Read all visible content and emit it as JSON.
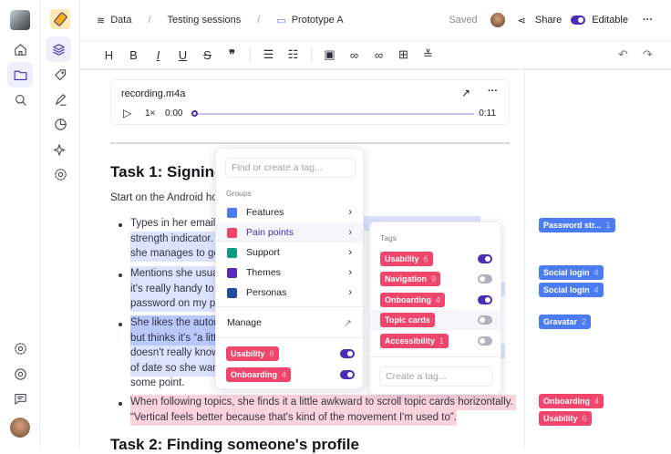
{
  "breadcrumb": {
    "items": [
      "Data",
      "Testing sessions",
      "Prototype A"
    ]
  },
  "header": {
    "status": "Saved",
    "share_label": "Share",
    "editable_label": "Editable",
    "editable_on": true
  },
  "toolbar": {
    "buttons": [
      "H",
      "B",
      "I",
      "U",
      "S",
      "❞",
      "bulleted-list",
      "numbered-list",
      "image",
      "link",
      "unlink",
      "table",
      "divider"
    ]
  },
  "audio": {
    "filename": "recording.m4a",
    "speed": "1×",
    "current": "0:00",
    "duration": "0:11",
    "progress": 0
  },
  "document": {
    "task1_title": "Task 1: Signing",
    "intro": "Start on the Android ho",
    "lines": [
      "Types in her email a",
      "strength indicator.",
      "she manages to ge",
      "Mentions she usua",
      "it's really handy to",
      "password on my ph",
      "She likes the autom",
      "but thinks it's “a litt",
      "doesn't really know",
      "of date so she wan",
      "some point."
    ],
    "pink_line1": "When following topics, she finds it a little awkward to scroll topic cards horizontally.",
    "pink_line2": "“Vertical feels better because that's kind of the movement I'm used to”.",
    "task2_title": "Task 2: Finding someone's profile"
  },
  "tag_menu": {
    "search_placeholder": "Find or create a tag...",
    "groups_label": "Groups",
    "groups": [
      {
        "name": "Features",
        "color": "#4c7cf2"
      },
      {
        "name": "Pain points",
        "color": "#f0466b"
      },
      {
        "name": "Support",
        "color": "#0e9b84"
      },
      {
        "name": "Themes",
        "color": "#5a2bb8"
      },
      {
        "name": "Personas",
        "color": "#234a9e"
      }
    ],
    "manage_label": "Manage",
    "applied": [
      {
        "name": "Usability",
        "count": "6",
        "on": true
      },
      {
        "name": "Onboarding",
        "count": "4",
        "on": true
      }
    ]
  },
  "submenu": {
    "label": "Tags",
    "tags": [
      {
        "name": "Usability",
        "count": "6",
        "on": true
      },
      {
        "name": "Navigation",
        "count": "9",
        "on": false
      },
      {
        "name": "Onboarding",
        "count": "4",
        "on": true
      },
      {
        "name": "Topic cards",
        "count": "",
        "on": false
      },
      {
        "name": "Accessibility",
        "count": "1",
        "on": false
      }
    ],
    "create_placeholder": "Create a tag..."
  },
  "margin_tags": [
    {
      "name": "Password str...",
      "count": "1",
      "color": "#4c7cf2"
    },
    {
      "name": "Social login",
      "count": "4",
      "color": "#4c7cf2"
    },
    {
      "name": "Social login",
      "count": "4",
      "color": "#4c7cf2"
    },
    {
      "name": "Gravatar",
      "count": "2",
      "color": "#4c7cf2"
    },
    {
      "name": "Onboarding",
      "count": "4",
      "color": "#f0466b"
    },
    {
      "name": "Usability",
      "count": "6",
      "color": "#f0466b"
    }
  ]
}
